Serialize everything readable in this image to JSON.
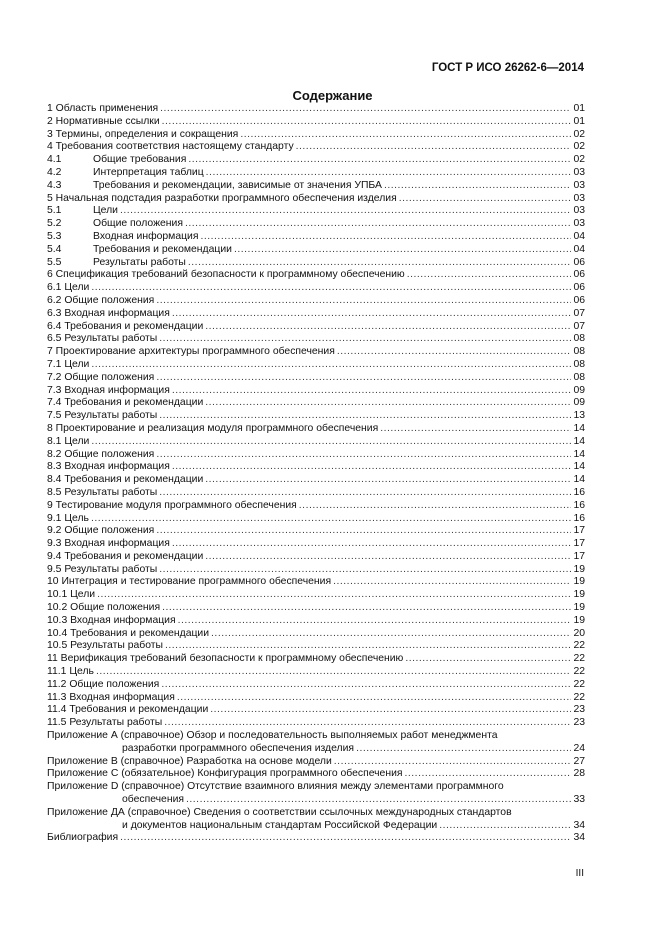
{
  "header": "ГОСТ Р ИСО 26262-6—2014",
  "title": "Содержание",
  "entries": [
    {
      "text": "1 Область применения",
      "page": "01"
    },
    {
      "text": "2 Нормативные ссылки",
      "page": "01"
    },
    {
      "text": "3 Термины, определения и сокращения",
      "page": "02"
    },
    {
      "text": "4 Требования соответствия настоящему стандарту",
      "page": "02"
    },
    {
      "num": "4.1",
      "text": "Общие требования",
      "page": "02"
    },
    {
      "num": "4.2",
      "text": "Интерпретация таблиц",
      "page": "03"
    },
    {
      "num": "4.3",
      "text": "Требования и рекомендации, зависимые от значения УПБА",
      "page": "03"
    },
    {
      "text": "5 Начальная подстадия разработки программного обеспечения изделия",
      "page": "03"
    },
    {
      "num": "5.1",
      "text": "Цели",
      "page": "03"
    },
    {
      "num": "5.2",
      "text": "Общие положения",
      "page": "03"
    },
    {
      "num": "5.3",
      "text": "Входная информация",
      "page": "04"
    },
    {
      "num": "5.4",
      "text": "Требования и рекомендации",
      "page": "04"
    },
    {
      "num": "5.5",
      "text": "Результаты работы",
      "page": "06"
    },
    {
      "text": "6 Спецификация требований безопасности к программному обеспечению",
      "page": "06"
    },
    {
      "text": "6.1 Цели",
      "page": "06"
    },
    {
      "text": "6.2 Общие положения",
      "page": "06"
    },
    {
      "text": "6.3 Входная информация",
      "page": "07"
    },
    {
      "text": "6.4 Требования и рекомендации",
      "page": "07"
    },
    {
      "text": "6.5 Результаты работы",
      "page": "08"
    },
    {
      "text": "7 Проектирование архитектуры программного обеспечения",
      "page": "08"
    },
    {
      "text": "7.1 Цели",
      "page": "08"
    },
    {
      "text": "7.2 Общие положения",
      "page": "08"
    },
    {
      "text": "7.3 Входная информация",
      "page": "09"
    },
    {
      "text": "7.4 Требования и рекомендации",
      "page": "09"
    },
    {
      "text": "7.5 Результаты работы",
      "page": "13"
    },
    {
      "text": "8 Проектирование и реализация модуля программного обеспечения",
      "page": "14"
    },
    {
      "text": "8.1 Цели",
      "page": "14"
    },
    {
      "text": "8.2 Общие положения",
      "page": "14"
    },
    {
      "text": "8.3 Входная информация",
      "page": "14"
    },
    {
      "text": "8.4 Требования и рекомендации",
      "page": "14"
    },
    {
      "text": "8.5 Результаты работы",
      "page": "16"
    },
    {
      "text": "9 Тестирование модуля программного обеспечения",
      "page": "16"
    },
    {
      "text": "9.1 Цель",
      "page": "16"
    },
    {
      "text": "9.2 Общие положения",
      "page": "17"
    },
    {
      "text": "9.3 Входная информация",
      "page": "17"
    },
    {
      "text": "9.4 Требования и рекомендации",
      "page": "17"
    },
    {
      "text": "9.5 Результаты работы",
      "page": "19"
    },
    {
      "text": "10 Интеграция и тестирование программного обеспечения",
      "page": "19"
    },
    {
      "text": "10.1 Цели",
      "page": "19"
    },
    {
      "text": "10.2 Общие положения",
      "page": "19"
    },
    {
      "text": "10.3 Входная информация",
      "page": "19"
    },
    {
      "text": "10.4 Требования и рекомендации",
      "page": "20"
    },
    {
      "text": "10.5 Результаты работы",
      "page": "22"
    },
    {
      "text": "11 Верификация требований безопасности к программному обеспечению",
      "page": "22"
    },
    {
      "text": "11.1 Цель",
      "page": "22"
    },
    {
      "text": "11.2 Общие положения",
      "page": "22"
    },
    {
      "text": "11.3 Входная информация",
      "page": "22"
    },
    {
      "text": "11.4 Требования и рекомендации",
      "page": "23"
    },
    {
      "text": "11.5 Результаты работы",
      "page": "23"
    },
    {
      "text": "Приложение А (справочное) Обзор и последовательность выполняемых работ менеджмента",
      "cont": "разработки программного обеспечения изделия",
      "page": "24"
    },
    {
      "text": "Приложение В (справочное) Разработка на основе модели",
      "page": "27"
    },
    {
      "text": "Приложение С (обязательное) Конфигурация программного обеспечения",
      "page": "28"
    },
    {
      "text": "Приложение D (справочное) Отсутствие взаимного влияния между элементами программного",
      "cont": "обеспечения",
      "page": "33"
    },
    {
      "text": "Приложение ДА (справочное) Сведения о соответствии ссылочных международных стандартов",
      "cont": "и документов национальным стандартам Российской Федерации",
      "page": "34"
    },
    {
      "text": "Библиография",
      "page": "34"
    }
  ],
  "page_number": "III"
}
